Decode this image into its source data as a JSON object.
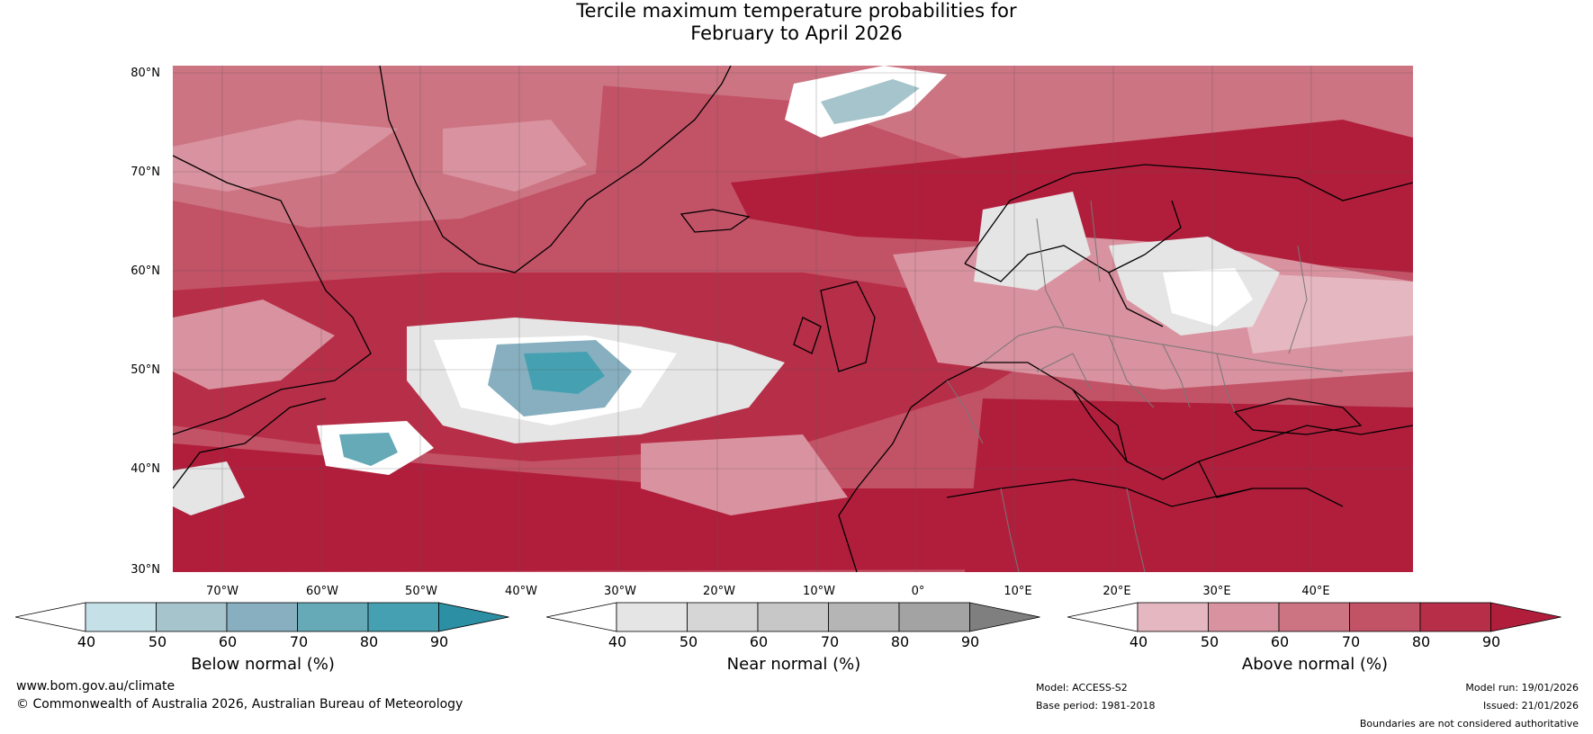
{
  "title": {
    "line1": "Tercile maximum temperature probabilities for",
    "line2": "February to April 2026"
  },
  "map": {
    "latitude_labels": [
      "80°N",
      "70°N",
      "60°N",
      "50°N",
      "40°N",
      "30°N"
    ],
    "longitude_labels": [
      "70°W",
      "60°W",
      "50°W",
      "40°W",
      "30°W",
      "20°W",
      "10°W",
      "0°",
      "10°E",
      "20°E",
      "30°E",
      "40°E"
    ]
  },
  "legend": {
    "below": {
      "label": "Below normal (%)",
      "ticks": [
        "40",
        "50",
        "60",
        "70",
        "80",
        "90"
      ],
      "colors": [
        "#ffffff",
        "#c6e0e8",
        "#a5c4cc",
        "#87afbf",
        "#66aab8",
        "#45a1b2",
        "#2d8fa3"
      ]
    },
    "near": {
      "label": "Near normal (%)",
      "ticks": [
        "40",
        "50",
        "60",
        "70",
        "80",
        "90"
      ],
      "colors": [
        "#ffffff",
        "#e5e5e5",
        "#d6d6d6",
        "#c7c7c7",
        "#b5b5b5",
        "#a3a3a3",
        "#7f7f7f"
      ]
    },
    "above": {
      "label": "Above normal (%)",
      "ticks": [
        "40",
        "50",
        "60",
        "70",
        "80",
        "90"
      ],
      "colors": [
        "#ffffff",
        "#e5b8c1",
        "#d9929f",
        "#cc7482",
        "#c25266",
        "#b72e48",
        "#b11e3c"
      ]
    }
  },
  "footer": {
    "website": "www.bom.gov.au/climate",
    "copyright": "© Commonwealth of Australia 2026, Australian Bureau of Meteorology",
    "model": "Model: ACCESS-S2",
    "base_period": "Base period: 1981-2018",
    "model_run": "Model run: 19/01/2026",
    "issued": "Issued: 21/01/2026",
    "disclaimer": "Boundaries are not considered authoritative"
  }
}
